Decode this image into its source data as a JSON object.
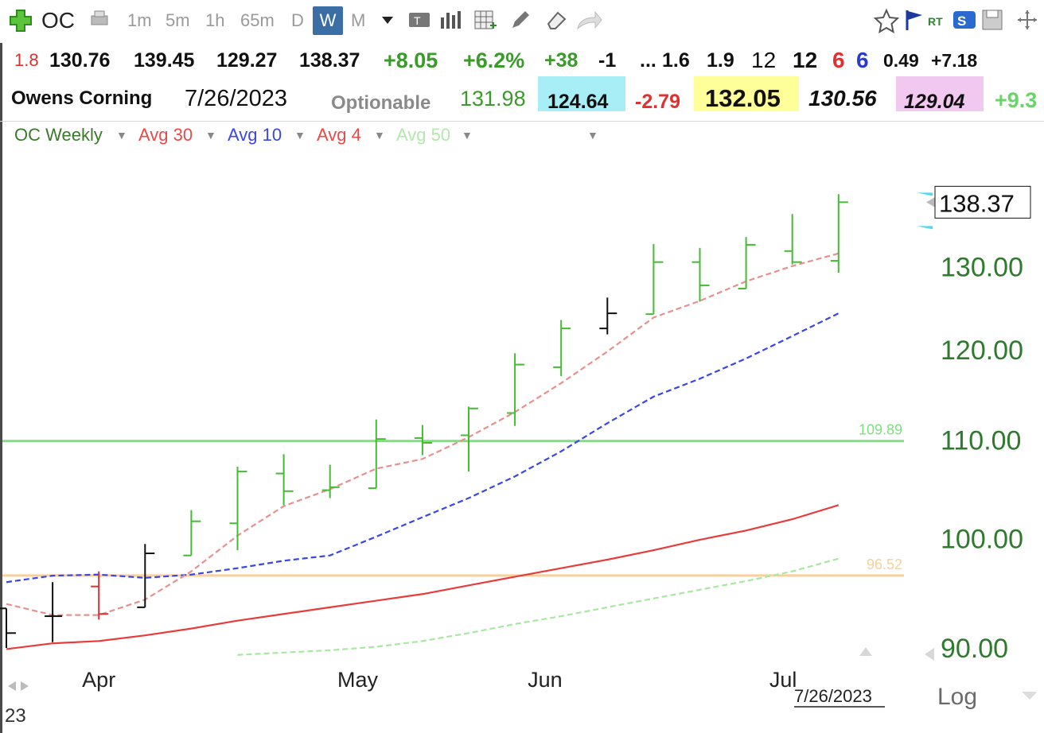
{
  "toolbar": {
    "symbol": "OC",
    "timeframes": [
      "1m",
      "5m",
      "1h",
      "65m",
      "D",
      "W",
      "M"
    ],
    "active_timeframe": "W"
  },
  "quote_row1": {
    "volume_ratio": "1.8",
    "open": "130.76",
    "high": "139.45",
    "low": "129.27",
    "close": "138.37",
    "change": "+8.05",
    "change_pct": "+6.2%",
    "v1": "+38",
    "v2": "-1",
    "ellipsis": "...",
    "v3": "1.6",
    "v4": "1.9",
    "v5": "12",
    "v6": "12",
    "v7": "6",
    "v8": "6",
    "v9": "0.49",
    "v10": "+7.18"
  },
  "quote_row2": {
    "company": "Owens Corning",
    "date": "7/26/2023",
    "optionable": "Optionable",
    "p1": "131.98",
    "p2": "124.64",
    "p3": "-2.79",
    "p4": "132.05",
    "p5": "130.56",
    "p6": "129.04",
    "p7": "+9.3"
  },
  "legend": {
    "items": [
      "OC Weekly",
      "Avg 30",
      "Avg 10",
      "Avg 4",
      "Avg 50"
    ]
  },
  "colors": {
    "up": "#44bb33",
    "down": "#e03030",
    "neutral": "#111111",
    "avg30": "#e83c3c",
    "avg10": "#3a46e6",
    "avg4": "#e89090",
    "avg50": "#a8e8a0",
    "level_green": "#7ee07e",
    "level_orange": "#f7d09e",
    "price_label": "#2f7a2f",
    "cyan_bg": "#a8eef7",
    "yellow_bg": "#ffff99",
    "pink_bg": "#f0c8f0"
  },
  "chart_data": {
    "type": "ohlc",
    "title": "OC Weekly",
    "ylim": [
      87,
      146
    ],
    "y_ticks": [
      90,
      100,
      110,
      120,
      130
    ],
    "y_tick_labels": [
      "90.00",
      "100.00",
      "110.00",
      "120.00",
      "130.00"
    ],
    "x_month_labels": [
      "Apr",
      "May",
      "Jun",
      "Jul"
    ],
    "x_month_positions": [
      2,
      7.6,
      11.65,
      16.8
    ],
    "last_price": "138.37",
    "date_label": "7/26/2023",
    "scale_label": "Log",
    "corner_label": "23",
    "levels": [
      {
        "value": 109.89,
        "label": "109.89",
        "color": "#7ee07e"
      },
      {
        "value": 96.52,
        "label": "96.52",
        "color": "#f7d09e"
      }
    ],
    "bars": [
      {
        "o": 93.5,
        "h": 93.5,
        "l": 90.0,
        "c": 91.3,
        "col": "neutral"
      },
      {
        "o": 92.8,
        "h": 95.9,
        "l": 90.5,
        "c": 92.8,
        "col": "neutral"
      },
      {
        "o": 95.5,
        "h": 96.9,
        "l": 92.5,
        "c": 93.0,
        "col": "down"
      },
      {
        "o": 93.6,
        "h": 99.5,
        "l": 93.6,
        "c": 98.6,
        "col": "neutral"
      },
      {
        "o": 98.4,
        "h": 102.8,
        "l": 98.4,
        "c": 101.7,
        "col": "up"
      },
      {
        "o": 101.5,
        "h": 107.2,
        "l": 98.9,
        "c": 106.7,
        "col": "up"
      },
      {
        "o": 106.5,
        "h": 108.5,
        "l": 103.3,
        "c": 104.7,
        "col": "up"
      },
      {
        "o": 104.8,
        "h": 107.4,
        "l": 104.0,
        "c": 105.1,
        "col": "up"
      },
      {
        "o": 105.0,
        "h": 112.2,
        "l": 105.0,
        "c": 110.1,
        "col": "up"
      },
      {
        "o": 110.2,
        "h": 111.6,
        "l": 108.4,
        "c": 109.7,
        "col": "up"
      },
      {
        "o": 110.5,
        "h": 113.6,
        "l": 106.7,
        "c": 113.4,
        "col": "up"
      },
      {
        "o": 112.9,
        "h": 119.6,
        "l": 111.5,
        "c": 118.3,
        "col": "up"
      },
      {
        "o": 118.0,
        "h": 123.5,
        "l": 117.0,
        "c": 122.5,
        "col": "up"
      },
      {
        "o": 122.5,
        "h": 126.2,
        "l": 121.8,
        "c": 124.3,
        "col": "neutral"
      },
      {
        "o": 124.2,
        "h": 132.9,
        "l": 124.2,
        "c": 130.6,
        "col": "up"
      },
      {
        "o": 130.6,
        "h": 132.4,
        "l": 125.7,
        "c": 127.7,
        "col": "up"
      },
      {
        "o": 127.3,
        "h": 133.8,
        "l": 127.3,
        "c": 132.8,
        "col": "up"
      },
      {
        "o": 132.0,
        "h": 136.8,
        "l": 130.3,
        "c": 130.6,
        "col": "up"
      },
      {
        "o": 130.76,
        "h": 139.45,
        "l": 129.27,
        "c": 138.37,
        "col": "up"
      }
    ],
    "series": [
      {
        "name": "Avg 30",
        "color": "#e83c3c",
        "dash": false,
        "x": [
          0,
          1,
          2,
          3,
          4,
          5,
          6,
          7,
          8,
          9,
          10,
          11,
          12,
          13,
          14,
          15,
          16,
          17,
          18
        ],
        "y": [
          89.9,
          90.4,
          90.6,
          91.1,
          91.7,
          92.4,
          93.0,
          93.6,
          94.2,
          94.8,
          95.6,
          96.4,
          97.2,
          98.0,
          98.9,
          99.9,
          100.8,
          101.9,
          103.3
        ]
      },
      {
        "name": "Avg 10",
        "color": "#3a46e6",
        "dash": true,
        "x": [
          0,
          1,
          2,
          3,
          4,
          5,
          6,
          7,
          8,
          9,
          10,
          11,
          12,
          13,
          14,
          15,
          16,
          17,
          18
        ],
        "y": [
          95.9,
          96.5,
          96.6,
          96.3,
          96.6,
          97.2,
          97.9,
          98.4,
          100.2,
          102.1,
          104.0,
          106.2,
          108.8,
          111.8,
          114.7,
          116.7,
          119.0,
          121.6,
          124.3
        ]
      },
      {
        "name": "Avg 4",
        "color": "#e89090",
        "dash": true,
        "x": [
          0,
          1,
          2,
          3,
          4,
          5,
          6,
          7,
          8,
          9,
          10,
          11,
          12,
          13,
          14,
          15,
          16,
          17,
          18
        ],
        "y": [
          93.9,
          92.9,
          92.9,
          94.3,
          96.9,
          100.3,
          103.2,
          104.9,
          107.0,
          108.0,
          110.3,
          113.0,
          116.2,
          119.8,
          123.8,
          125.8,
          128.2,
          130.1,
          131.7
        ]
      },
      {
        "name": "Avg 50",
        "color": "#a8e8a0",
        "dash": true,
        "x": [
          5,
          6,
          7,
          8,
          9,
          10,
          11,
          12,
          13,
          14,
          15,
          16,
          17,
          18
        ],
        "y": [
          89.4,
          89.6,
          89.8,
          90.1,
          90.6,
          91.3,
          92.1,
          92.8,
          93.6,
          94.4,
          95.2,
          96.0,
          96.9,
          98.1
        ]
      }
    ]
  }
}
